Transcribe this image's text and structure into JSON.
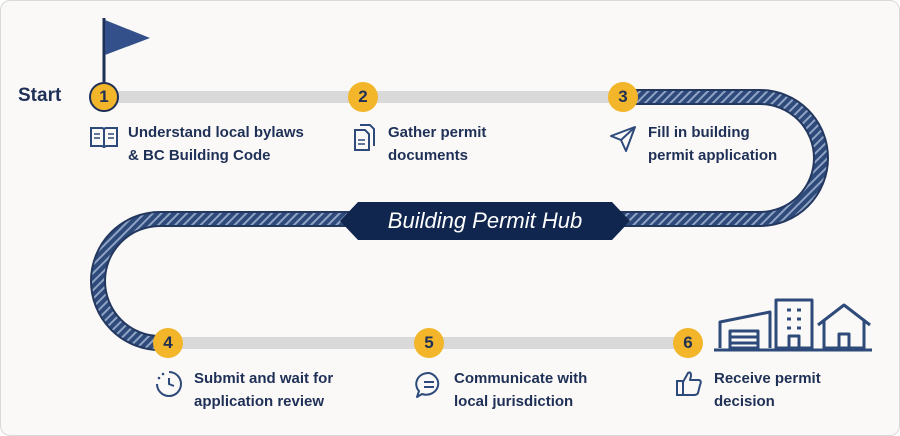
{
  "start_label": "Start",
  "hub_title": "Building Permit Hub",
  "colors": {
    "navy": "#1f3057",
    "accent": "#f3b52a",
    "track": "#d9d9d9",
    "background": "#faf9f7"
  },
  "steps": [
    {
      "number": "1",
      "text": "Understand local bylaws\n& BC Building Code",
      "icon": "open-book-icon"
    },
    {
      "number": "2",
      "text": "Gather permit\ndocuments",
      "icon": "documents-icon"
    },
    {
      "number": "3",
      "text": "Fill in building\npermit application",
      "icon": "paper-plane-icon"
    },
    {
      "number": "4",
      "text": "Submit and wait for\napplication review",
      "icon": "clock-icon"
    },
    {
      "number": "5",
      "text": "Communicate with\nlocal jurisdiction",
      "icon": "chat-bubble-icon"
    },
    {
      "number": "6",
      "text": "Receive permit\ndecision",
      "icon": "thumbs-up-icon"
    }
  ]
}
